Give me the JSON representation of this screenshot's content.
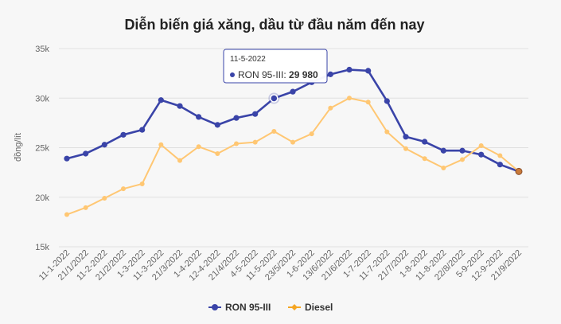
{
  "chart_data": {
    "type": "line",
    "title": "Diễn biến giá xăng, dầu từ đầu năm đến nay",
    "ylabel": "đồng/lít",
    "xlabel": "",
    "ylim": [
      15000,
      35000
    ],
    "ytick_labels": [
      "15k",
      "20k",
      "25k",
      "30k",
      "35k"
    ],
    "yticks": [
      15000,
      20000,
      25000,
      30000,
      35000
    ],
    "categories": [
      "11-1-2022",
      "21/1/2022",
      "11-2-2022",
      "21/2/2022",
      "1-3-2022",
      "11-3-2022",
      "21/3/2022",
      "1-4-2022",
      "12-4-2022",
      "21/4/2022",
      "4-5-2022",
      "11-5-2022",
      "23/5/2022",
      "1-6-2022",
      "13/6/2022",
      "21/6/2022",
      "1-7-2022",
      "11-7-2022",
      "21/7/2022",
      "1-8-2022",
      "11-8-2022",
      "22/8/2022",
      "5-9-2022",
      "12-9-2022",
      "21/9/2022"
    ],
    "series": [
      {
        "name": "RON 95-III",
        "color": "#3a44a8",
        "values": [
          23900,
          24400,
          25300,
          26300,
          26800,
          29800,
          29200,
          28100,
          27300,
          28000,
          28400,
          29980,
          30650,
          31600,
          32400,
          32870,
          32760,
          29700,
          26100,
          25600,
          24700,
          24700,
          24300,
          23300,
          22600
        ]
      },
      {
        "name": "Diesel",
        "color": "#ffc773",
        "values": [
          18250,
          18950,
          19900,
          20850,
          21350,
          25300,
          23700,
          25100,
          24400,
          25400,
          25550,
          26650,
          25550,
          26400,
          29000,
          30000,
          29600,
          26600,
          24900,
          23900,
          22950,
          23800,
          25200,
          24200,
          22600
        ]
      }
    ],
    "tooltip": {
      "date": "11-5-2022",
      "series": "RON 95-III",
      "value": "29 980"
    },
    "legend": [
      {
        "name": "RON 95-III",
        "color": "#3a44a8"
      },
      {
        "name": "Diesel",
        "color": "#f5a623"
      }
    ],
    "legend_position": "bottom-center"
  }
}
